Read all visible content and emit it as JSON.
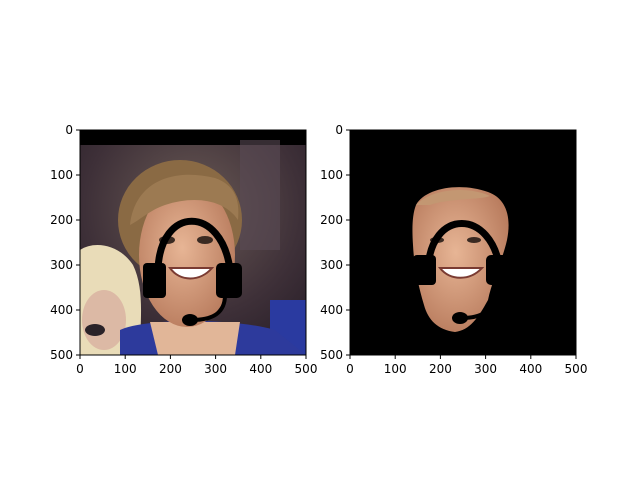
{
  "chart_data": [
    {
      "type": "image",
      "title": "",
      "xlabel": "",
      "ylabel": "",
      "xlim": [
        0,
        500
      ],
      "ylim": [
        500,
        0
      ],
      "xticks": [
        0,
        100,
        200,
        300,
        400,
        500
      ],
      "yticks": [
        0,
        100,
        200,
        300,
        400,
        500
      ],
      "image": {
        "content": "photo of a smiling man's face with a black headset drawn over it, blonde woman at lower-left, black band along the top",
        "has_headset_overlay": true
      }
    },
    {
      "type": "image",
      "title": "",
      "xlabel": "",
      "ylabel": "",
      "xlim": [
        0,
        500
      ],
      "ylim": [
        500,
        0
      ],
      "xticks": [
        0,
        100,
        200,
        300,
        400,
        500
      ],
      "yticks": [
        0,
        100,
        200,
        300,
        400,
        500
      ],
      "image": {
        "content": "segmented face region only, rest of image black, headset overlay removed leaving black holes",
        "background_color": "#000000"
      }
    }
  ],
  "colors": {
    "background": "#ffffff",
    "axes_frame": "#000000",
    "headset": "#000000",
    "skin": "#d6a07e",
    "hair": "#9c7a52"
  }
}
